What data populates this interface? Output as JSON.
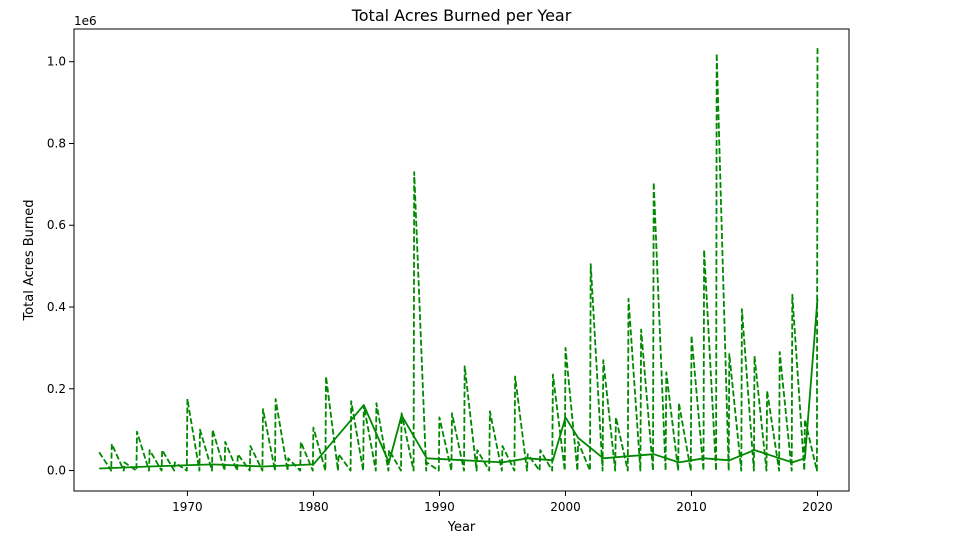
{
  "chart_data": {
    "type": "line",
    "title": "Total Acres Burned per Year",
    "xlabel": "Year",
    "ylabel": "Total Acres Burned",
    "y_scale_label": "1e6",
    "xlim": [
      1961,
      2022.5
    ],
    "ylim": [
      -50000,
      1080000
    ],
    "x_ticks": [
      1970,
      1980,
      1990,
      2000,
      2010,
      2020
    ],
    "x_tick_labels": [
      "1970",
      "1980",
      "1990",
      "2000",
      "2010",
      "2020"
    ],
    "y_ticks": [
      0,
      200000,
      400000,
      600000,
      800000,
      1000000
    ],
    "y_tick_labels": [
      "0.0",
      "0.2",
      "0.4",
      "0.6",
      "0.8",
      "1.0"
    ],
    "grid": false,
    "line_color": "#008800",
    "series": [
      {
        "style": "dashed",
        "x": [
          1963,
          1963.95,
          1964,
          1964.95,
          1965,
          1965.95,
          1966,
          1966.95,
          1967,
          1967.95,
          1968,
          1968.95,
          1969,
          1969.95,
          1970,
          1970.95,
          1971,
          1971.95,
          1972,
          1972.95,
          1973,
          1973.95,
          1974,
          1974.95,
          1975,
          1975.95,
          1976,
          1976.95,
          1977,
          1977.95,
          1978,
          1978.95,
          1979,
          1979.95,
          1980,
          1980.95,
          1981,
          1981.95,
          1982,
          1982.95,
          1983,
          1983.95,
          1984,
          1984.95,
          1985,
          1985.95,
          1986,
          1986.95,
          1987,
          1987.95,
          1988,
          1988.95,
          1989,
          1989.95,
          1990,
          1990.95,
          1991,
          1991.95,
          1992,
          1992.95,
          1993,
          1993.95,
          1994,
          1994.95,
          1995,
          1995.95,
          1996,
          1996.95,
          1997,
          1997.95,
          1998,
          1998.95,
          1999,
          1999.95,
          2000,
          2000.95,
          2001,
          2001.95,
          2002,
          2002.95,
          2003,
          2003.95,
          2004,
          2004.95,
          2005,
          2005.95,
          2006,
          2006.95,
          2007,
          2007.95,
          2008,
          2008.95,
          2009,
          2009.95,
          2010,
          2010.95,
          2011,
          2011.95,
          2012,
          2012.95,
          2013,
          2013.95,
          2014,
          2014.95,
          2015,
          2015.95,
          2016,
          2016.95,
          2017,
          2017.95,
          2018,
          2018.95,
          2019,
          2019.95,
          2020
        ],
        "y": [
          45000,
          0,
          65000,
          0,
          20000,
          0,
          95000,
          0,
          50000,
          0,
          50000,
          0,
          20000,
          0,
          175000,
          0,
          100000,
          0,
          100000,
          0,
          70000,
          0,
          40000,
          0,
          60000,
          0,
          150000,
          0,
          175000,
          0,
          30000,
          0,
          70000,
          0,
          105000,
          0,
          230000,
          0,
          40000,
          0,
          170000,
          0,
          160000,
          0,
          165000,
          0,
          50000,
          0,
          140000,
          0,
          730000,
          0,
          20000,
          0,
          130000,
          0,
          140000,
          0,
          255000,
          0,
          50000,
          0,
          145000,
          0,
          60000,
          0,
          230000,
          0,
          40000,
          0,
          50000,
          0,
          235000,
          0,
          300000,
          0,
          70000,
          0,
          505000,
          0,
          270000,
          0,
          130000,
          0,
          420000,
          0,
          345000,
          0,
          705000,
          0,
          240000,
          0,
          165000,
          0,
          330000,
          0,
          540000,
          0,
          1020000,
          0,
          285000,
          0,
          395000,
          0,
          280000,
          0,
          195000,
          0,
          290000,
          0,
          430000,
          0,
          125000,
          0,
          1035000
        ]
      },
      {
        "style": "solid",
        "x": [
          1963,
          1967,
          1972,
          1976,
          1980,
          1984,
          1986,
          1987,
          1989,
          1992,
          1995,
          1997,
          1999,
          2000,
          2001,
          2003,
          2005,
          2007,
          2009,
          2011,
          2013,
          2015,
          2016,
          2017,
          2018,
          2019,
          2020
        ],
        "y": [
          5000,
          10000,
          15000,
          10000,
          15000,
          160000,
          20000,
          135000,
          30000,
          25000,
          20000,
          30000,
          25000,
          130000,
          80000,
          30000,
          35000,
          40000,
          20000,
          30000,
          25000,
          50000,
          40000,
          30000,
          20000,
          30000,
          420000
        ]
      }
    ]
  }
}
